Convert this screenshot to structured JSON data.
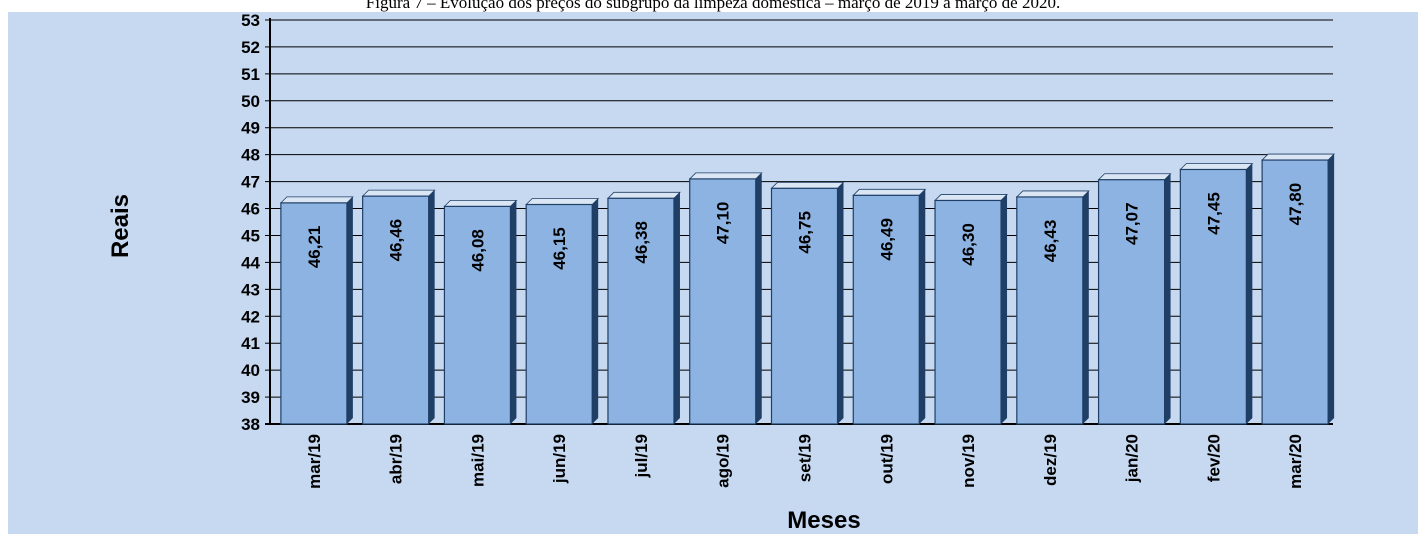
{
  "caption": "Figura 7 – Evolução dos preços do subgrupo da limpeza doméstica – março de 2019 a março de 2020.",
  "colors": {
    "background": "#c6d9f1",
    "bar_front": "#8db3e2",
    "bar_side": "#1f3f66",
    "bar_top": "#dbe6f4",
    "gridline": "#000000"
  },
  "chart_data": {
    "type": "bar",
    "title": "Figura 7 – Evolução dos preços do subgrupo da limpeza doméstica – março de 2019 a março de 2020.",
    "xlabel": "Meses",
    "ylabel": "Reais",
    "ylim": [
      38,
      53
    ],
    "yticks": [
      38,
      39,
      40,
      41,
      42,
      43,
      44,
      45,
      46,
      47,
      48,
      49,
      50,
      51,
      52,
      53
    ],
    "grid": true,
    "legend": "none",
    "categories": [
      "mar/19",
      "abr/19",
      "mai/19",
      "jun/19",
      "jul/19",
      "ago/19",
      "set/19",
      "out/19",
      "nov/19",
      "dez/19",
      "jan/20",
      "fev/20",
      "mar/20"
    ],
    "values": [
      46.21,
      46.46,
      46.08,
      46.15,
      46.38,
      47.1,
      46.75,
      46.49,
      46.3,
      46.43,
      47.07,
      47.45,
      47.8
    ],
    "value_labels": [
      "46,21",
      "46,46",
      "46,08",
      "46,15",
      "46,38",
      "47,10",
      "46,75",
      "46,49",
      "46,30",
      "46,43",
      "47,07",
      "47,45",
      "47,80"
    ]
  }
}
